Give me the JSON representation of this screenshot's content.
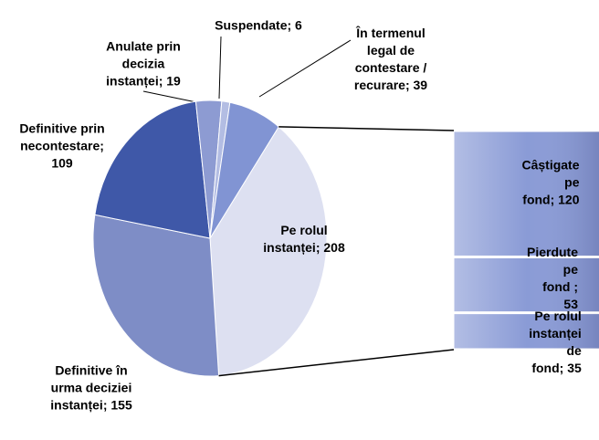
{
  "chart_data": {
    "type": "bar-of-pie",
    "values": [
      208,
      155,
      109,
      19,
      6,
      39
    ],
    "value_labels": [
      "Pe rolul\ninstanței; 208",
      "Definitive în\nurma deciziei\ninstanței; 155",
      "Definitive prin\nnecontestare;\n109",
      "Anulate prin\ndecizia\ninstanței; 19",
      "Suspendate; 6",
      "În termenul\nlegal de\ncontestare /\nrecurare; 39"
    ],
    "colors": [
      "#dde0f1",
      "#7e8dc6",
      "#3f58a8",
      "#8d9bd2",
      "#b3bde3",
      "#8194d3"
    ],
    "bar": {
      "values": [
        120,
        53,
        35
      ],
      "value_labels": [
        "Câștigate pe\nfond; 120",
        "Pierdute pe\nfond ; 53",
        "Pe rolul\ninstanței de\nfond; 35"
      ],
      "color": "#8a9bd6"
    }
  }
}
